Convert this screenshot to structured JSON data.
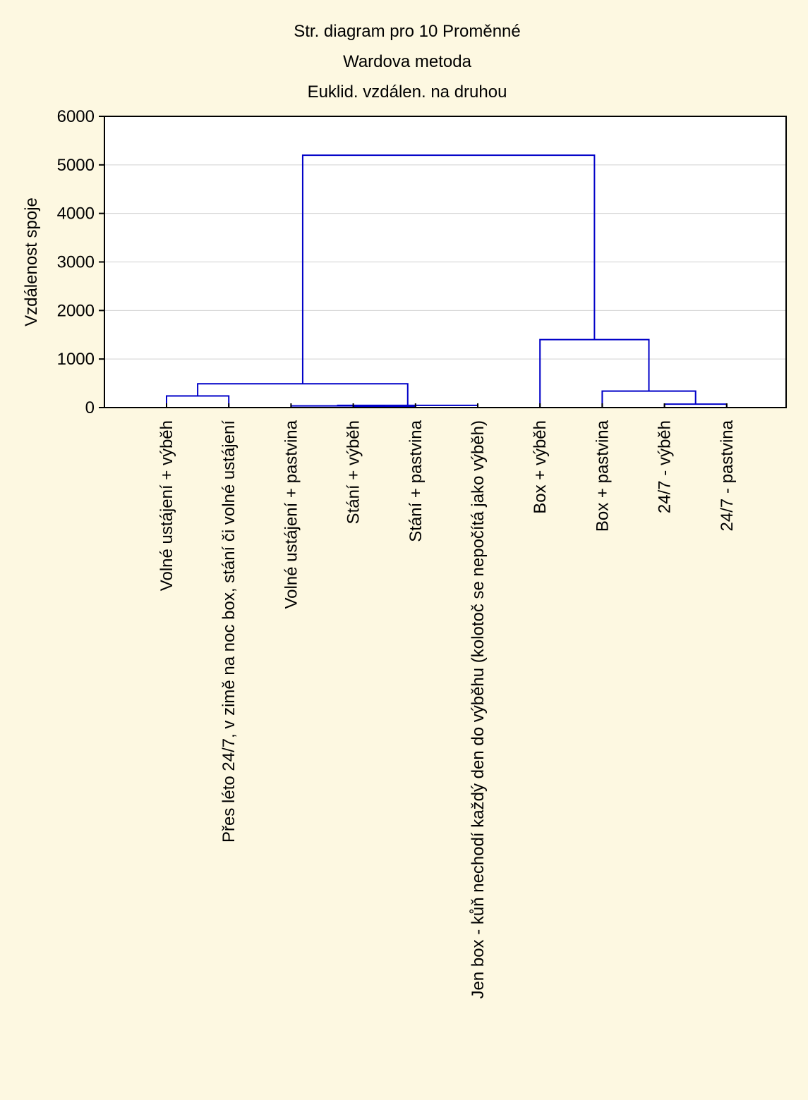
{
  "chart_data": {
    "type": "dendrogram",
    "title_lines": [
      "Str. diagram pro 10  Proměnné",
      "Wardova metoda",
      "Euklid. vzdálen. na druhou"
    ],
    "ylabel": "Vzdálenost spoje",
    "ylim": [
      0,
      6000
    ],
    "yticks": [
      0,
      1000,
      2000,
      3000,
      4000,
      5000,
      6000
    ],
    "grid": true,
    "leaves": [
      "Volné ustájení + výběh",
      "Přes léto 24/7, v zimě na noc box, stání či volné ustájení",
      "Volné ustájení + pastvina",
      "Stání + výběh",
      "Stání + pastvina",
      "Jen box - kůň nechodí každý den do výběhu (kolotoč se nepočítá jako výběh)",
      "Box + výběh",
      "Box + pastvina",
      "24/7 - výběh",
      "24/7 - pastvina"
    ],
    "merges": [
      {
        "a": "L3",
        "b": "L4",
        "height": 20
      },
      {
        "a": "L2",
        "b": "M0",
        "height": 35
      },
      {
        "a": "L5",
        "b": "M1",
        "height": 45
      },
      {
        "a": "L8",
        "b": "L9",
        "height": 70
      },
      {
        "a": "L0",
        "b": "L1",
        "height": 240
      },
      {
        "a": "L7",
        "b": "M3",
        "height": 340
      },
      {
        "a": "M4",
        "b": "M2",
        "height": 490
      },
      {
        "a": "L6",
        "b": "M5",
        "height": 1400
      },
      {
        "a": "M6",
        "b": "M7",
        "height": 5200
      }
    ]
  },
  "colors": {
    "background": "#fdf8e1",
    "plot_background": "#ffffff",
    "link": "#0000c8",
    "grid": "#d0d0d0"
  }
}
